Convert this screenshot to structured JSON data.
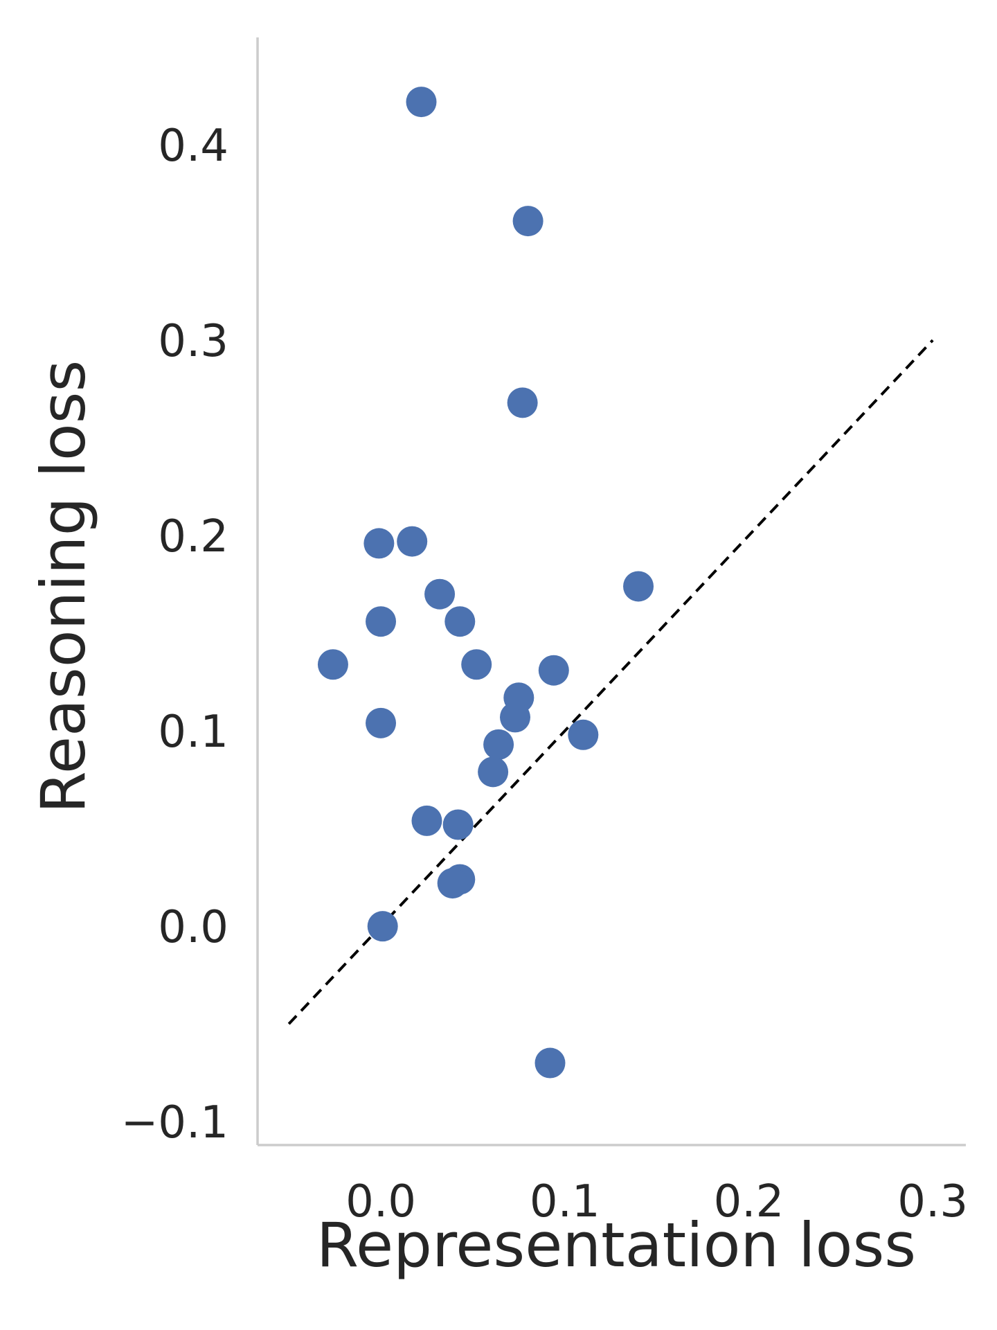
{
  "chart_data": {
    "type": "scatter",
    "xlabel": "Representation loss",
    "ylabel": "Reasoning loss",
    "xlim": [
      -0.067,
      0.318
    ],
    "ylim": [
      -0.112,
      0.455
    ],
    "xticks": [
      0.0,
      0.1,
      0.2,
      0.3
    ],
    "yticks": [
      -0.1,
      0.0,
      0.1,
      0.2,
      0.3,
      0.4
    ],
    "xtick_labels": [
      "0.0",
      "0.1",
      "0.2",
      "0.3"
    ],
    "ytick_labels": [
      "−0.1",
      "0.0",
      "0.1",
      "0.2",
      "0.3",
      "0.4"
    ],
    "grid": false,
    "point_color": "#4c72b0",
    "axis_color": "#cccccc",
    "reference_line": {
      "style": "dashed",
      "color": "#000000",
      "x": [
        -0.05,
        0.3
      ],
      "y": [
        -0.05,
        0.3
      ]
    },
    "series": [
      {
        "points": [
          {
            "x": 0.022,
            "y": 0.422
          },
          {
            "x": 0.08,
            "y": 0.361
          },
          {
            "x": 0.077,
            "y": 0.268
          },
          {
            "x": -0.001,
            "y": 0.196
          },
          {
            "x": 0.017,
            "y": 0.197
          },
          {
            "x": 0.032,
            "y": 0.17
          },
          {
            "x": 0.14,
            "y": 0.174
          },
          {
            "x": 0.0,
            "y": 0.156
          },
          {
            "x": 0.043,
            "y": 0.156
          },
          {
            "x": -0.026,
            "y": 0.134
          },
          {
            "x": 0.052,
            "y": 0.134
          },
          {
            "x": 0.094,
            "y": 0.131
          },
          {
            "x": 0.075,
            "y": 0.117
          },
          {
            "x": 0.073,
            "y": 0.107
          },
          {
            "x": 0.0,
            "y": 0.104
          },
          {
            "x": 0.11,
            "y": 0.098
          },
          {
            "x": 0.064,
            "y": 0.093
          },
          {
            "x": 0.061,
            "y": 0.079
          },
          {
            "x": 0.025,
            "y": 0.054
          },
          {
            "x": 0.042,
            "y": 0.052
          },
          {
            "x": 0.043,
            "y": 0.024
          },
          {
            "x": 0.039,
            "y": 0.022
          },
          {
            "x": 0.001,
            "y": 0.0
          },
          {
            "x": 0.092,
            "y": -0.07
          }
        ]
      }
    ]
  }
}
